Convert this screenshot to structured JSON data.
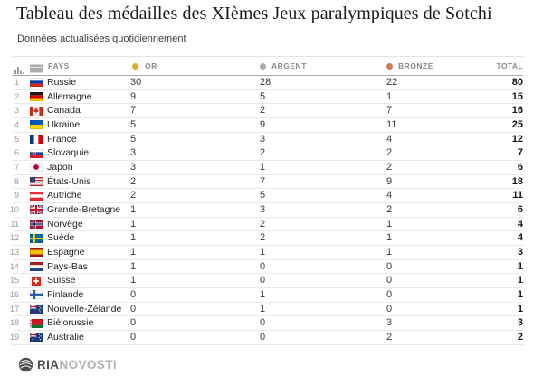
{
  "title": "Tableau des médailles des XIèmes Jeux paralympiques de Sotchi",
  "subtitle": "Données actualisées quotidiennement",
  "table": {
    "headers": {
      "pays": "PAYS",
      "or": "OR",
      "argent": "ARGENT",
      "bronze": "BRONZE",
      "total": "TOTAL"
    }
  },
  "legend_colors": {
    "gold": "#DFAC2F",
    "silver": "#ABABAB",
    "bronze": "#CE7858"
  },
  "icons": {
    "rank": "rank-bars-icon",
    "flag_placeholder": "flag-placeholder-icon",
    "brand": "ria-novosti-globe-icon"
  },
  "footer": {
    "brand_primary": "RIA",
    "brand_secondary": "NOVOSTI"
  },
  "chart_data": {
    "type": "table",
    "title": "Tableau des médailles des XIèmes Jeux paralympiques de Sotchi",
    "subtitle": "Données actualisées quotidiennement",
    "columns": [
      "Rang",
      "Pays",
      "Or",
      "Argent",
      "Bronze",
      "Total"
    ],
    "legend": [
      {
        "label": "OR",
        "color": "#DFAC2F"
      },
      {
        "label": "ARGENT",
        "color": "#ABABAB"
      },
      {
        "label": "BRONZE",
        "color": "#CE7858"
      }
    ],
    "rows": [
      {
        "rank": 1,
        "country": "Russie",
        "flag": "ru",
        "gold": 30,
        "silver": 28,
        "bronze": 22,
        "total": 80
      },
      {
        "rank": 2,
        "country": "Allemagne",
        "flag": "de",
        "gold": 9,
        "silver": 5,
        "bronze": 1,
        "total": 15
      },
      {
        "rank": 3,
        "country": "Canada",
        "flag": "ca",
        "gold": 7,
        "silver": 2,
        "bronze": 7,
        "total": 16
      },
      {
        "rank": 4,
        "country": "Ukraine",
        "flag": "ua",
        "gold": 5,
        "silver": 9,
        "bronze": 11,
        "total": 25
      },
      {
        "rank": 5,
        "country": "France",
        "flag": "fr",
        "gold": 5,
        "silver": 3,
        "bronze": 4,
        "total": 12
      },
      {
        "rank": 6,
        "country": "Slovaquie",
        "flag": "sk",
        "gold": 3,
        "silver": 2,
        "bronze": 2,
        "total": 7
      },
      {
        "rank": 7,
        "country": "Japon",
        "flag": "jp",
        "gold": 3,
        "silver": 1,
        "bronze": 2,
        "total": 6
      },
      {
        "rank": 8,
        "country": "États-Unis",
        "flag": "us",
        "gold": 2,
        "silver": 7,
        "bronze": 9,
        "total": 18
      },
      {
        "rank": 9,
        "country": "Autriche",
        "flag": "at",
        "gold": 2,
        "silver": 5,
        "bronze": 4,
        "total": 11
      },
      {
        "rank": 10,
        "country": "Grande-Bretagne",
        "flag": "gb",
        "gold": 1,
        "silver": 3,
        "bronze": 2,
        "total": 6
      },
      {
        "rank": 11,
        "country": "Norvège",
        "flag": "no",
        "gold": 1,
        "silver": 2,
        "bronze": 1,
        "total": 4
      },
      {
        "rank": 12,
        "country": "Suède",
        "flag": "se",
        "gold": 1,
        "silver": 2,
        "bronze": 1,
        "total": 4
      },
      {
        "rank": 13,
        "country": "Espagne",
        "flag": "es",
        "gold": 1,
        "silver": 1,
        "bronze": 1,
        "total": 3
      },
      {
        "rank": 14,
        "country": "Pays-Bas",
        "flag": "nl",
        "gold": 1,
        "silver": 0,
        "bronze": 0,
        "total": 1
      },
      {
        "rank": 15,
        "country": "Suisse",
        "flag": "ch",
        "gold": 1,
        "silver": 0,
        "bronze": 0,
        "total": 1
      },
      {
        "rank": 16,
        "country": "Finlande",
        "flag": "fi",
        "gold": 0,
        "silver": 1,
        "bronze": 0,
        "total": 1
      },
      {
        "rank": 17,
        "country": "Nouvelle-Zélande",
        "flag": "nz",
        "gold": 0,
        "silver": 1,
        "bronze": 0,
        "total": 1
      },
      {
        "rank": 18,
        "country": "Biélorussie",
        "flag": "by",
        "gold": 0,
        "silver": 0,
        "bronze": 3,
        "total": 3
      },
      {
        "rank": 19,
        "country": "Australie",
        "flag": "au",
        "gold": 0,
        "silver": 0,
        "bronze": 2,
        "total": 2
      }
    ]
  }
}
